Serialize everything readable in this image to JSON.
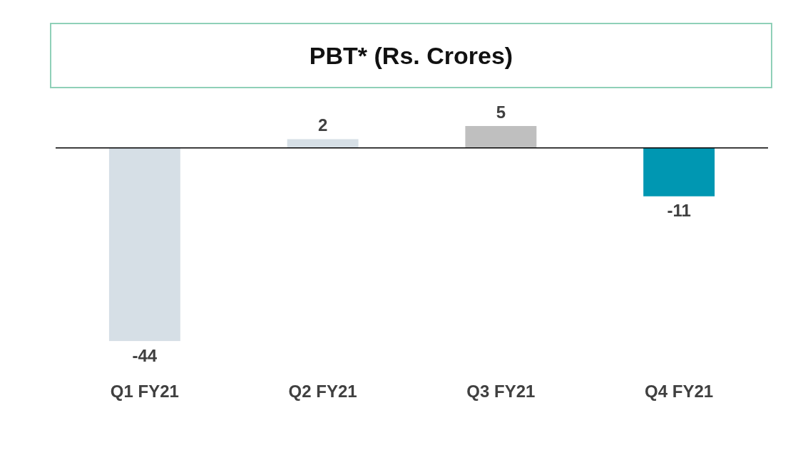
{
  "chart_data": {
    "type": "bar",
    "title": "PBT* (Rs. Crores)",
    "categories": [
      "Q1 FY21",
      "Q2 FY21",
      "Q3 FY21",
      "Q4 FY21"
    ],
    "values": [
      -44,
      2,
      5,
      -11
    ],
    "colors": [
      "#d6dfe6",
      "#d6dfe6",
      "#bfbfbf",
      "#0097b2"
    ],
    "data_labels": true
  }
}
